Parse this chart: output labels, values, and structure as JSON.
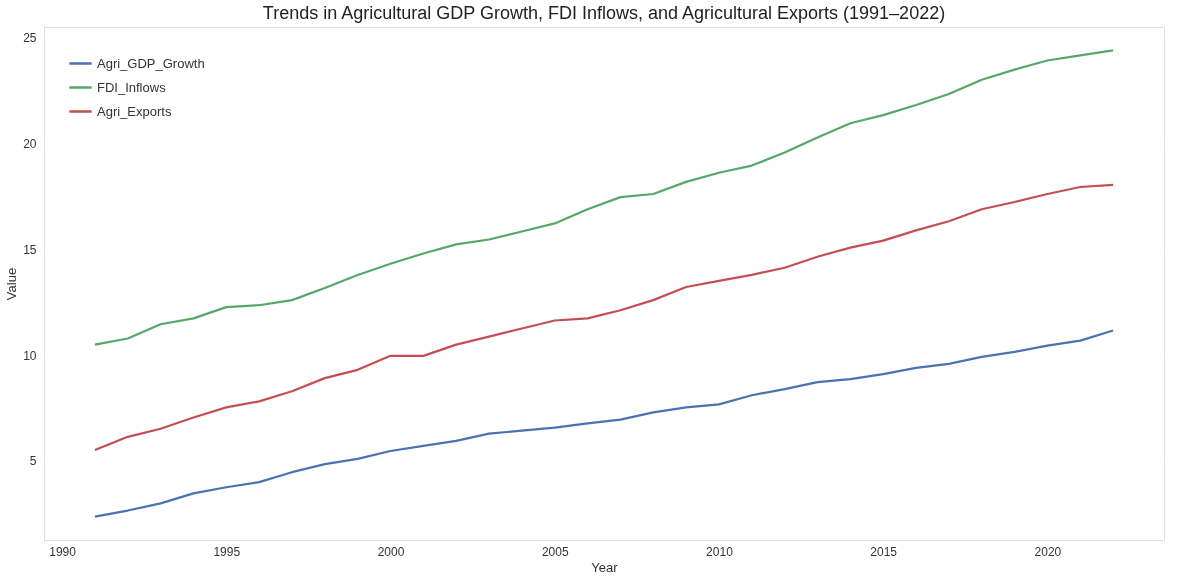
{
  "chart_data": {
    "type": "line",
    "title": "Trends in Agricultural GDP Growth, FDI Inflows, and Agricultural Exports (1991–2022)",
    "xlabel": "Year",
    "ylabel": "Value",
    "x": [
      1991,
      1992,
      1993,
      1994,
      1995,
      1996,
      1997,
      1998,
      1999,
      2000,
      2001,
      2002,
      2003,
      2004,
      2005,
      2006,
      2007,
      2008,
      2009,
      2010,
      2011,
      2012,
      2013,
      2014,
      2015,
      2016,
      2017,
      2018,
      2019,
      2020,
      2021,
      2022
    ],
    "series": [
      {
        "name": "Agri_GDP_Growth",
        "color": "#4c72b0",
        "values": [
          2.37,
          2.66,
          3.0,
          3.47,
          3.76,
          4.0,
          4.47,
          4.85,
          5.1,
          5.47,
          5.71,
          5.95,
          6.29,
          6.43,
          6.57,
          6.77,
          6.95,
          7.29,
          7.53,
          7.67,
          8.1,
          8.39,
          8.72,
          8.86,
          9.1,
          9.39,
          9.58,
          9.91,
          10.15,
          10.44,
          10.68,
          11.16
        ]
      },
      {
        "name": "FDI_Inflows",
        "color": "#55a868",
        "values": [
          10.49,
          10.78,
          11.45,
          11.73,
          12.26,
          12.35,
          12.59,
          13.16,
          13.78,
          14.31,
          14.79,
          15.22,
          15.45,
          15.83,
          16.21,
          16.88,
          17.45,
          17.6,
          18.17,
          18.6,
          18.94,
          19.56,
          20.27,
          20.94,
          21.32,
          21.8,
          22.32,
          22.99,
          23.47,
          23.9,
          24.14,
          24.38
        ]
      },
      {
        "name": "Agri_Exports",
        "color": "#c44e52",
        "values": [
          5.52,
          6.14,
          6.52,
          7.05,
          7.53,
          7.81,
          8.29,
          8.91,
          9.3,
          9.96,
          9.96,
          10.49,
          10.87,
          11.25,
          11.63,
          11.73,
          12.11,
          12.59,
          13.21,
          13.5,
          13.78,
          14.12,
          14.64,
          15.07,
          15.4,
          15.88,
          16.31,
          16.88,
          17.22,
          17.6,
          17.93,
          18.03
        ]
      }
    ],
    "xlim": [
      1989.45,
      2023.55
    ],
    "xticks": [
      1990,
      1995,
      2000,
      2005,
      2010,
      2015,
      2020
    ],
    "ylim": [
      1.27,
      25.48
    ],
    "yticks": [
      5,
      10,
      15,
      20,
      25
    ],
    "grid": true,
    "legend": "top left",
    "marker": "none",
    "line_style": "solid"
  }
}
